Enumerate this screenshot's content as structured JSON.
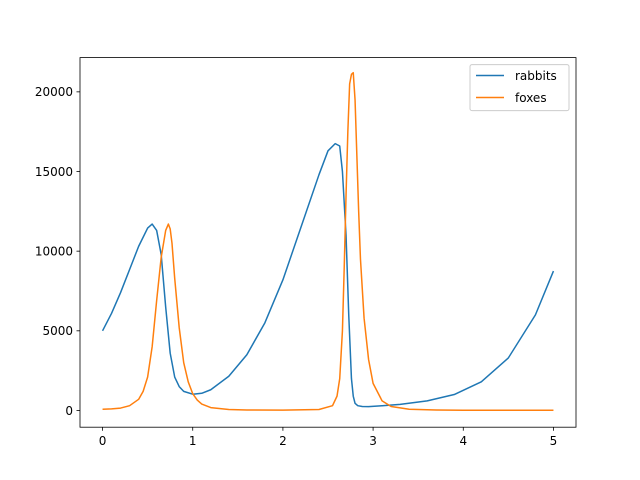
{
  "chart_data": {
    "type": "line",
    "title": "",
    "xlabel": "",
    "ylabel": "",
    "xlim": [
      -0.25,
      5.25
    ],
    "ylim": [
      -1050,
      22150
    ],
    "grid": false,
    "legend_position": "top-right",
    "x_ticks": [
      0,
      1,
      2,
      3,
      4,
      5
    ],
    "x_tick_labels": [
      "0",
      "1",
      "2",
      "3",
      "4",
      "5"
    ],
    "y_ticks": [
      0,
      5000,
      10000,
      15000,
      20000
    ],
    "y_tick_labels": [
      "0",
      "5000",
      "10000",
      "15000",
      "20000"
    ],
    "series": [
      {
        "name": "rabbits",
        "color": "#1f77b4",
        "x": [
          0,
          0.1,
          0.2,
          0.3,
          0.4,
          0.5,
          0.55,
          0.6,
          0.65,
          0.7,
          0.75,
          0.8,
          0.85,
          0.9,
          1.0,
          1.1,
          1.2,
          1.4,
          1.6,
          1.8,
          2.0,
          2.2,
          2.4,
          2.5,
          2.58,
          2.63,
          2.66,
          2.7,
          2.73,
          2.76,
          2.78,
          2.8,
          2.83,
          2.88,
          2.95,
          3.1,
          3.3,
          3.6,
          3.9,
          4.2,
          4.5,
          4.8,
          5.0
        ],
        "y": [
          5000,
          6100,
          7400,
          8850,
          10300,
          11450,
          11700,
          11300,
          9800,
          6500,
          3600,
          2100,
          1500,
          1200,
          1020,
          1080,
          1300,
          2150,
          3500,
          5500,
          8200,
          11500,
          14800,
          16300,
          16750,
          16600,
          15000,
          11000,
          6000,
          2000,
          900,
          450,
          300,
          250,
          240,
          300,
          380,
          600,
          1000,
          1800,
          3300,
          6000,
          8750
        ]
      },
      {
        "name": "foxes",
        "color": "#ff7f0e",
        "x": [
          0,
          0.1,
          0.2,
          0.3,
          0.4,
          0.45,
          0.5,
          0.55,
          0.6,
          0.65,
          0.7,
          0.73,
          0.75,
          0.77,
          0.8,
          0.85,
          0.9,
          0.95,
          1.0,
          1.05,
          1.1,
          1.2,
          1.4,
          1.6,
          2.0,
          2.4,
          2.55,
          2.6,
          2.63,
          2.66,
          2.68,
          2.7,
          2.72,
          2.74,
          2.76,
          2.78,
          2.8,
          2.82,
          2.84,
          2.86,
          2.9,
          2.95,
          3.0,
          3.1,
          3.2,
          3.4,
          3.7,
          4.0,
          4.5,
          5.0
        ],
        "y": [
          80,
          100,
          150,
          300,
          700,
          1200,
          2100,
          4000,
          6900,
          9600,
          11300,
          11700,
          11400,
          10500,
          8300,
          5200,
          3000,
          1800,
          1050,
          650,
          400,
          180,
          60,
          30,
          20,
          60,
          300,
          900,
          2000,
          5000,
          9000,
          13500,
          17500,
          20500,
          21100,
          21200,
          19500,
          16000,
          12500,
          9500,
          5800,
          3200,
          1700,
          600,
          250,
          80,
          30,
          15,
          10,
          10
        ]
      }
    ]
  }
}
